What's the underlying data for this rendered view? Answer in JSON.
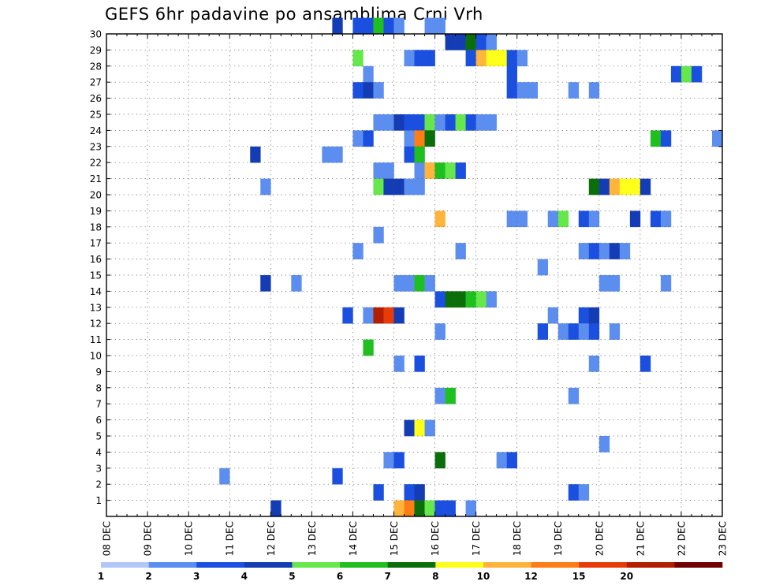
{
  "chart_data": {
    "type": "heatmap",
    "title": "GEFS 6hr padavine po ansamblima Crni Vrh",
    "x_labels": [
      "08 DEC",
      "09 DEC",
      "10 DEC",
      "11 DEC",
      "12 DEC",
      "13 DEC",
      "14 DEC",
      "15 DEC",
      "16 DEC",
      "17 DEC",
      "18 DEC",
      "19 DEC",
      "20 DEC",
      "21 DEC",
      "22 DEC",
      "23 DEC"
    ],
    "y_labels": [
      "1",
      "2",
      "3",
      "4",
      "5",
      "6",
      "7",
      "8",
      "9",
      "10",
      "11",
      "12",
      "13",
      "14",
      "15",
      "16",
      "17",
      "18",
      "19",
      "20",
      "21",
      "22",
      "23",
      "24",
      "25",
      "26",
      "27",
      "28",
      "29",
      "30"
    ],
    "x_range": [
      0,
      60
    ],
    "y_range": [
      0,
      30
    ],
    "grid": true,
    "colorbar": {
      "labels": [
        "1",
        "2",
        "3",
        "4",
        "5",
        "6",
        "7",
        "8",
        "10",
        "12",
        "15",
        "20"
      ],
      "colors": [
        "#b3c7f7",
        "#5c8ef0",
        "#1a4fe0",
        "#143cb4",
        "#66e84c",
        "#1fbf1f",
        "#0a6e0a",
        "#ffff1a",
        "#ffb43c",
        "#ff7d14",
        "#e63c0a",
        "#b31e00",
        "#700000"
      ]
    },
    "cells": [
      [
        22,
        30,
        3
      ],
      [
        24,
        30,
        2
      ],
      [
        25,
        30,
        2
      ],
      [
        26,
        30,
        5
      ],
      [
        27,
        30,
        2
      ],
      [
        28,
        30,
        1
      ],
      [
        31,
        30,
        1
      ],
      [
        32,
        30,
        1
      ],
      [
        33,
        29,
        3
      ],
      [
        34,
        29,
        3
      ],
      [
        35,
        29,
        6
      ],
      [
        36,
        29,
        2
      ],
      [
        37,
        29,
        1
      ],
      [
        24,
        28,
        4
      ],
      [
        29,
        28,
        1
      ],
      [
        30,
        28,
        2
      ],
      [
        31,
        28,
        2
      ],
      [
        35,
        28,
        2
      ],
      [
        36,
        28,
        8
      ],
      [
        37,
        28,
        7
      ],
      [
        38,
        28,
        7
      ],
      [
        39,
        28,
        2
      ],
      [
        40,
        28,
        1
      ],
      [
        25,
        27,
        1
      ],
      [
        39,
        27,
        2
      ],
      [
        55,
        27,
        2
      ],
      [
        56,
        27,
        4
      ],
      [
        57,
        27,
        2
      ],
      [
        24,
        26,
        2
      ],
      [
        25,
        26,
        3
      ],
      [
        26,
        26,
        1
      ],
      [
        39,
        26,
        2
      ],
      [
        40,
        26,
        1
      ],
      [
        41,
        26,
        1
      ],
      [
        45,
        26,
        1
      ],
      [
        47,
        26,
        1
      ],
      [
        26,
        24,
        1
      ],
      [
        27,
        24,
        1
      ],
      [
        28,
        24,
        3
      ],
      [
        29,
        24,
        2
      ],
      [
        30,
        24,
        2
      ],
      [
        31,
        24,
        4
      ],
      [
        32,
        24,
        1
      ],
      [
        33,
        24,
        2
      ],
      [
        34,
        24,
        4
      ],
      [
        35,
        24,
        2
      ],
      [
        36,
        24,
        1
      ],
      [
        37,
        24,
        1
      ],
      [
        24,
        23,
        1
      ],
      [
        25,
        23,
        2
      ],
      [
        29,
        23,
        1
      ],
      [
        30,
        23,
        9
      ],
      [
        31,
        23,
        6
      ],
      [
        53,
        23,
        5
      ],
      [
        54,
        23,
        2
      ],
      [
        59,
        23,
        1
      ],
      [
        14,
        22,
        3
      ],
      [
        21,
        22,
        1
      ],
      [
        22,
        22,
        1
      ],
      [
        29,
        22,
        2
      ],
      [
        30,
        22,
        5
      ],
      [
        26,
        21,
        1
      ],
      [
        27,
        21,
        1
      ],
      [
        30,
        21,
        1
      ],
      [
        31,
        21,
        8
      ],
      [
        32,
        21,
        5
      ],
      [
        33,
        21,
        4
      ],
      [
        34,
        21,
        2
      ],
      [
        15,
        20,
        1
      ],
      [
        26,
        20,
        4
      ],
      [
        27,
        20,
        3
      ],
      [
        28,
        20,
        3
      ],
      [
        29,
        20,
        1
      ],
      [
        30,
        20,
        1
      ],
      [
        47,
        20,
        6
      ],
      [
        48,
        20,
        3
      ],
      [
        49,
        20,
        8
      ],
      [
        50,
        20,
        7
      ],
      [
        51,
        20,
        7
      ],
      [
        52,
        20,
        3
      ],
      [
        32,
        18,
        8
      ],
      [
        39,
        18,
        1
      ],
      [
        40,
        18,
        1
      ],
      [
        43,
        18,
        1
      ],
      [
        44,
        18,
        4
      ],
      [
        46,
        18,
        2
      ],
      [
        47,
        18,
        1
      ],
      [
        51,
        18,
        3
      ],
      [
        53,
        18,
        2
      ],
      [
        54,
        18,
        1
      ],
      [
        26,
        17,
        1
      ],
      [
        24,
        16,
        1
      ],
      [
        34,
        16,
        1
      ],
      [
        46,
        16,
        1
      ],
      [
        47,
        16,
        2
      ],
      [
        48,
        16,
        1
      ],
      [
        49,
        16,
        3
      ],
      [
        50,
        16,
        1
      ],
      [
        42,
        15,
        1
      ],
      [
        15,
        14,
        3
      ],
      [
        18,
        14,
        1
      ],
      [
        28,
        14,
        1
      ],
      [
        29,
        14,
        1
      ],
      [
        30,
        14,
        5
      ],
      [
        31,
        14,
        1
      ],
      [
        48,
        14,
        1
      ],
      [
        49,
        14,
        1
      ],
      [
        54,
        14,
        1
      ],
      [
        32,
        13,
        2
      ],
      [
        33,
        13,
        6
      ],
      [
        34,
        13,
        6
      ],
      [
        35,
        13,
        5
      ],
      [
        36,
        13,
        4
      ],
      [
        37,
        13,
        1
      ],
      [
        23,
        12,
        2
      ],
      [
        25,
        12,
        1
      ],
      [
        26,
        12,
        11
      ],
      [
        27,
        12,
        10
      ],
      [
        28,
        12,
        3
      ],
      [
        43,
        12,
        1
      ],
      [
        46,
        12,
        2
      ],
      [
        47,
        12,
        3
      ],
      [
        32,
        11,
        1
      ],
      [
        42,
        11,
        2
      ],
      [
        44,
        11,
        1
      ],
      [
        45,
        11,
        2
      ],
      [
        46,
        11,
        1
      ],
      [
        47,
        11,
        2
      ],
      [
        49,
        11,
        1
      ],
      [
        25,
        10,
        5
      ],
      [
        28,
        9,
        1
      ],
      [
        30,
        9,
        2
      ],
      [
        47,
        9,
        1
      ],
      [
        52,
        9,
        2
      ],
      [
        32,
        7,
        1
      ],
      [
        33,
        7,
        5
      ],
      [
        45,
        7,
        1
      ],
      [
        29,
        5,
        3
      ],
      [
        30,
        5,
        7
      ],
      [
        31,
        5,
        1
      ],
      [
        48,
        4,
        1
      ],
      [
        27,
        3,
        1
      ],
      [
        28,
        3,
        2
      ],
      [
        32,
        3,
        6
      ],
      [
        38,
        3,
        1
      ],
      [
        39,
        3,
        2
      ],
      [
        11,
        2,
        1
      ],
      [
        22,
        2,
        2
      ],
      [
        26,
        1,
        2
      ],
      [
        29,
        1,
        2
      ],
      [
        30,
        1,
        3
      ],
      [
        45,
        1,
        2
      ],
      [
        46,
        1,
        1
      ],
      [
        16,
        0,
        3
      ],
      [
        28,
        0,
        8
      ],
      [
        29,
        0,
        9
      ],
      [
        30,
        0,
        6
      ],
      [
        31,
        0,
        4
      ],
      [
        32,
        0,
        2
      ],
      [
        33,
        0,
        2
      ],
      [
        35,
        0,
        1
      ]
    ]
  }
}
